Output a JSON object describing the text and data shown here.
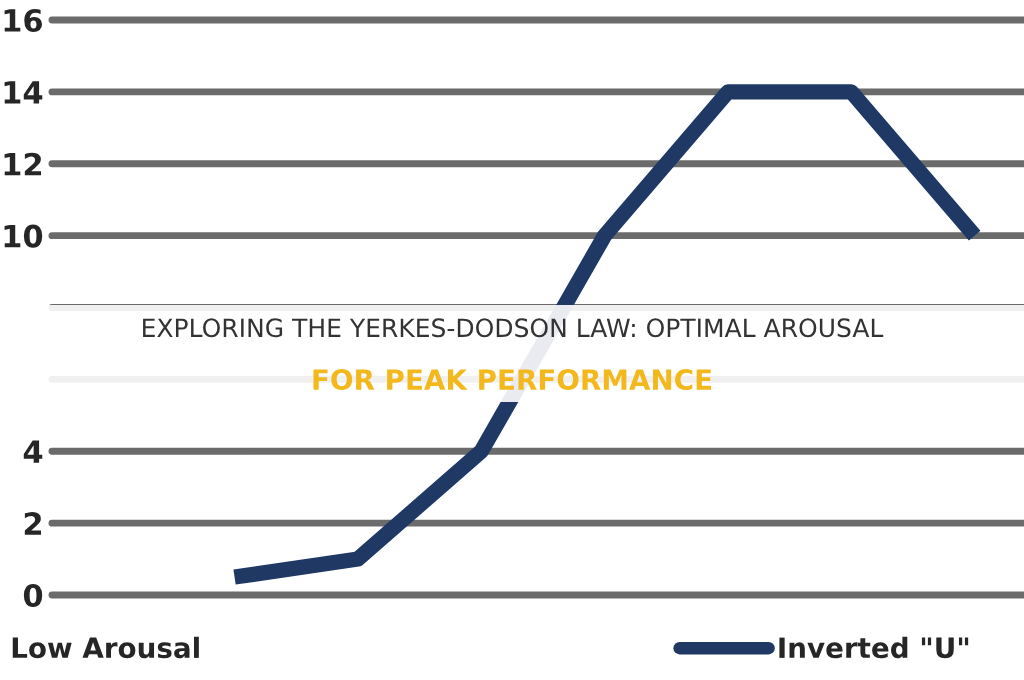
{
  "chart_data": {
    "type": "line",
    "title": "EXPLORING THE YERKES-DODSON LAW: OPTIMAL AROUSAL\nFOR PEAK PERFORMANCE",
    "xlabel": "Low Arousal",
    "categories": [
      null,
      null,
      null,
      null,
      null,
      null,
      null
    ],
    "series": [
      {
        "name": "Inverted \"U\"",
        "color": "#1f3864",
        "values": [
          0.5,
          1,
          4,
          10,
          14,
          14,
          10
        ]
      }
    ],
    "ylim": [
      0,
      16
    ],
    "yticks": [
      0,
      2,
      4,
      {
        "value": 6,
        "label": null
      },
      {
        "value": 8,
        "label": null
      },
      10,
      12,
      14,
      16
    ],
    "grid": "y",
    "legend": "bottom right",
    "line_style": "solid"
  }
}
